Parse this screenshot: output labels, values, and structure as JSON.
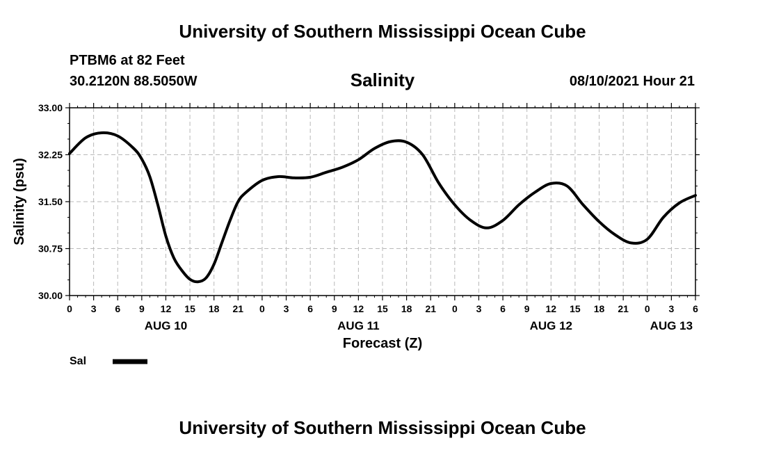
{
  "header": {
    "title": "University of Southern Mississippi Ocean Cube",
    "station": "PTBM6 at 82 Feet",
    "coords": "30.2120N  88.5050W",
    "timestamp": "08/10/2021 Hour 21"
  },
  "footer": {
    "title": "University of Southern Mississippi Ocean Cube"
  },
  "chart_data": {
    "type": "line",
    "title": "Salinity",
    "xlabel": "Forecast (Z)",
    "ylabel": "Salinity (psu)",
    "ylim": [
      30.0,
      33.0
    ],
    "yticks": [
      "30.00",
      "30.75",
      "31.50",
      "32.25",
      "33.00"
    ],
    "x_unit": "hours since AUG 10 00Z",
    "xlim": [
      0,
      78
    ],
    "xtick_labels": [
      "0",
      "3",
      "6",
      "9",
      "12",
      "15",
      "18",
      "21",
      "0",
      "3",
      "6",
      "9",
      "12",
      "15",
      "18",
      "21",
      "0",
      "3",
      "6",
      "9",
      "12",
      "15",
      "18",
      "21",
      "0",
      "3",
      "6"
    ],
    "date_labels": [
      {
        "label": "AUG 10",
        "hour": 12
      },
      {
        "label": "AUG 11",
        "hour": 36
      },
      {
        "label": "AUG 12",
        "hour": 60
      },
      {
        "label": "AUG 13",
        "hour": 75
      }
    ],
    "grid": true,
    "legend": {
      "position": "bottom-left",
      "entries": [
        "Sal"
      ]
    },
    "series": [
      {
        "name": "Sal",
        "color": "#000000",
        "x": [
          0,
          2,
          4,
          6,
          8,
          9,
          10,
          11,
          12,
          13,
          14,
          15,
          16,
          17,
          18,
          19,
          20,
          21,
          22,
          24,
          26,
          28,
          30,
          32,
          34,
          36,
          38,
          40,
          42,
          44,
          46,
          48,
          50,
          52,
          54,
          56,
          58,
          60,
          62,
          64,
          66,
          68,
          70,
          72,
          74,
          76,
          78
        ],
        "y": [
          32.27,
          32.52,
          32.6,
          32.55,
          32.35,
          32.18,
          31.9,
          31.45,
          30.95,
          30.6,
          30.4,
          30.26,
          30.22,
          30.28,
          30.5,
          30.85,
          31.2,
          31.5,
          31.65,
          31.84,
          31.9,
          31.88,
          31.89,
          31.97,
          32.05,
          32.17,
          32.35,
          32.46,
          32.45,
          32.25,
          31.8,
          31.45,
          31.2,
          31.08,
          31.2,
          31.45,
          31.65,
          31.79,
          31.75,
          31.45,
          31.18,
          30.97,
          30.84,
          30.9,
          31.25,
          31.48,
          31.6
        ]
      }
    ]
  }
}
